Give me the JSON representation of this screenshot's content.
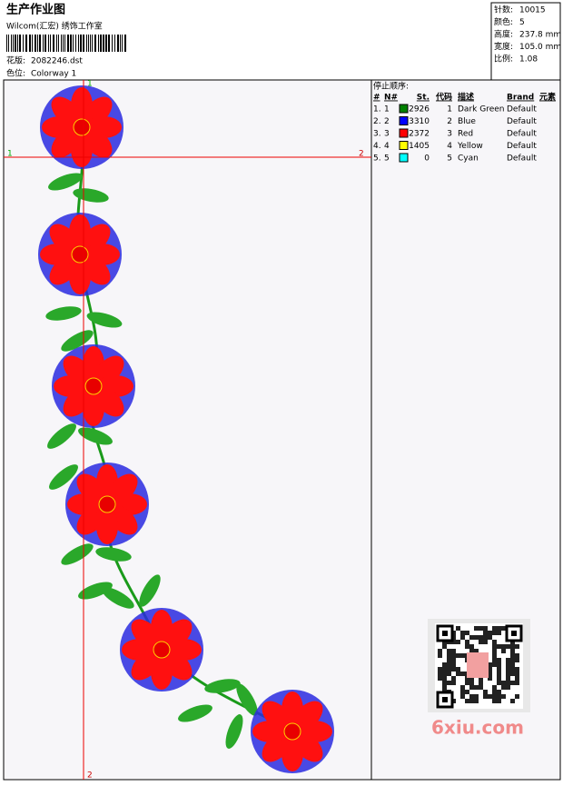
{
  "header": {
    "title": "生产作业图",
    "studio": "Wilcom(汇宏) 绣饰工作室",
    "design_label": "花版:",
    "design": "2082246.dst",
    "colorway_label": "色位:",
    "colorway": "Colorway 1"
  },
  "stats": [
    {
      "label": "针数:",
      "value": "10015"
    },
    {
      "label": "颜色:",
      "value": "5"
    },
    {
      "label": "高度:",
      "value": "237.8 mm"
    },
    {
      "label": "宽度:",
      "value": "105.0 mm"
    },
    {
      "label": "比例:",
      "value": "1.08"
    }
  ],
  "guides": {
    "h_start": "1",
    "h_end": "2",
    "v_start": "1",
    "v_end": "2"
  },
  "color_table": {
    "title": "停止顺序:",
    "columns": [
      "#",
      "N#",
      "St.",
      "代码",
      "描述",
      "Brand",
      "元素"
    ],
    "rows": [
      {
        "index": "1.",
        "number": "1",
        "color": "#008000",
        "stitches": 2926,
        "code": 1,
        "description": "Dark Green",
        "brand": "Default"
      },
      {
        "index": "2.",
        "number": "2",
        "color": "#0000ff",
        "stitches": 3310,
        "code": 2,
        "description": "Blue",
        "brand": "Default"
      },
      {
        "index": "3.",
        "number": "3",
        "color": "#ff0000",
        "stitches": 2372,
        "code": 3,
        "description": "Red",
        "brand": "Default"
      },
      {
        "index": "4.",
        "number": "4",
        "color": "#ffff00",
        "stitches": 1405,
        "code": 4,
        "description": "Yellow",
        "brand": "Default"
      },
      {
        "index": "5.",
        "number": "5",
        "color": "#00ffff",
        "stitches": 0,
        "code": 5,
        "description": "Cyan",
        "brand": "Default"
      }
    ]
  },
  "watermark": "6xiu.com"
}
